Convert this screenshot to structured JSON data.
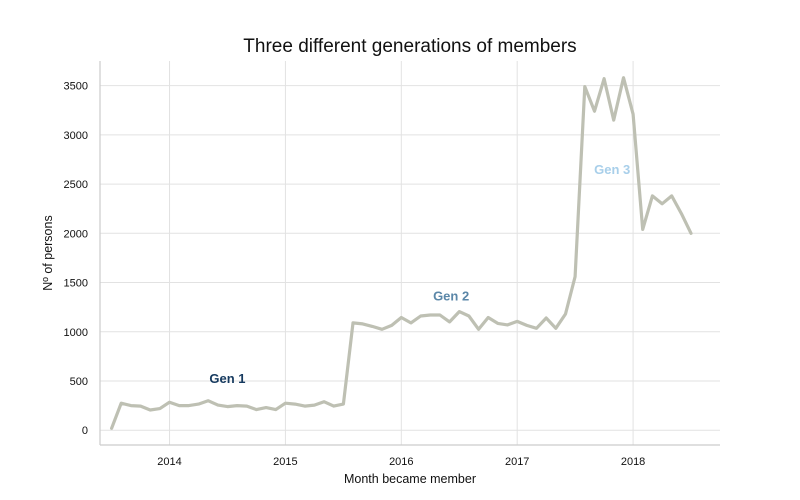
{
  "chart_data": {
    "type": "line",
    "title": "Three different generations of members",
    "xlabel": "Month became member",
    "ylabel": "Nº of persons",
    "xlim": [
      2013.4,
      2018.75
    ],
    "ylim": [
      -150,
      3750
    ],
    "x_ticks": [
      2014,
      2015,
      2016,
      2017,
      2018
    ],
    "x_tick_labels": [
      "2014",
      "2015",
      "2016",
      "2017",
      "2018"
    ],
    "y_ticks": [
      0,
      500,
      1000,
      1500,
      2000,
      2500,
      3000,
      3500
    ],
    "y_tick_labels": [
      "0",
      "500",
      "1000",
      "1500",
      "2000",
      "2500",
      "3000",
      "3500"
    ],
    "grid": true,
    "line_color": "#bec0b3",
    "series": [
      {
        "x": [
          2013.5,
          2013.583,
          2013.667,
          2013.75,
          2013.833,
          2013.917,
          2014.0,
          2014.083,
          2014.167,
          2014.25,
          2014.333,
          2014.417,
          2014.5,
          2014.583,
          2014.667,
          2014.75,
          2014.833,
          2014.917,
          2015.0,
          2015.083,
          2015.167,
          2015.25,
          2015.333,
          2015.417,
          2015.5,
          2015.583,
          2015.667,
          2015.75,
          2015.833,
          2015.917,
          2016.0,
          2016.083,
          2016.167,
          2016.25,
          2016.333,
          2016.417,
          2016.5,
          2016.583,
          2016.667,
          2016.75,
          2016.833,
          2016.917,
          2017.0,
          2017.083,
          2017.167,
          2017.25,
          2017.333,
          2017.417,
          2017.5,
          2017.583,
          2017.667,
          2017.75,
          2017.833,
          2017.917,
          2018.0,
          2018.083,
          2018.167,
          2018.25,
          2018.333,
          2018.417,
          2018.5
        ],
        "values": [
          20,
          275,
          250,
          245,
          205,
          220,
          285,
          250,
          250,
          265,
          300,
          255,
          240,
          250,
          245,
          210,
          230,
          210,
          275,
          265,
          245,
          255,
          290,
          245,
          265,
          1090,
          1080,
          1055,
          1025,
          1065,
          1145,
          1090,
          1160,
          1170,
          1170,
          1100,
          1205,
          1160,
          1025,
          1145,
          1085,
          1070,
          1105,
          1065,
          1035,
          1140,
          1035,
          1180,
          1560,
          3490,
          3240,
          3570,
          3150,
          3580,
          3210,
          2040,
          2380,
          2300,
          2380,
          2200,
          2000
        ]
      }
    ],
    "annotations": [
      {
        "text": "Gen 1",
        "x": 2014.5,
        "y": 480,
        "color": "#163a5f"
      },
      {
        "text": "Gen 2",
        "x": 2016.43,
        "y": 1320,
        "color": "#5b87a8"
      },
      {
        "text": "Gen 3",
        "x": 2017.82,
        "y": 2600,
        "color": "#a8cfea"
      }
    ]
  }
}
